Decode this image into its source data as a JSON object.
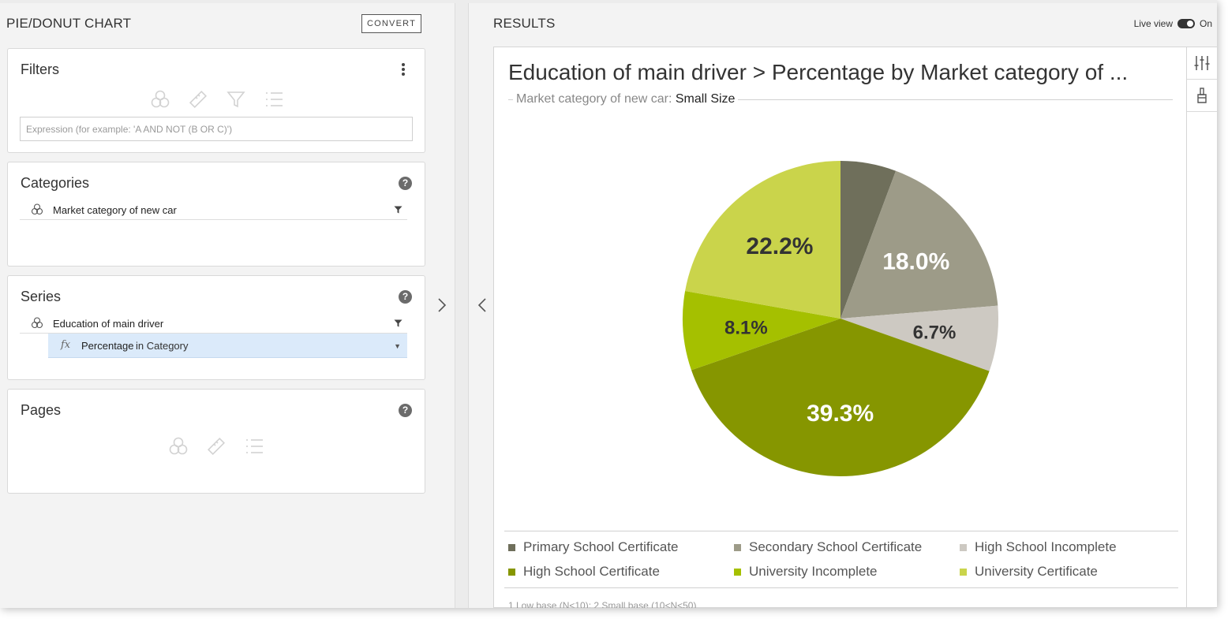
{
  "left_panel": {
    "title": "PIE/DONUT CHART",
    "convert_label": "CONVERT",
    "filters": {
      "title": "Filters",
      "expression_placeholder": "Expression (for example: 'A AND NOT (B OR C)')"
    },
    "categories": {
      "title": "Categories",
      "help": "?",
      "items": [
        {
          "label": "Market category of new car"
        }
      ]
    },
    "series": {
      "title": "Series",
      "help": "?",
      "field": {
        "label": "Education of main driver"
      },
      "measure": {
        "fx": "fx",
        "label": "Percentage",
        "sub": "in Category"
      }
    },
    "pages": {
      "title": "Pages",
      "help": "?"
    }
  },
  "right_panel": {
    "title": "RESULTS",
    "live_view_label": "Live view",
    "live_view_state": "On",
    "footnote": "1 Low base (N<10); 2 Small base (10<N<50)"
  },
  "chart_data": {
    "type": "pie",
    "title": "Education of main driver > Percentage by Market category of ...",
    "subtitle_label": "Market category of new car:",
    "subtitle_value": "Small Size",
    "categories": [
      "Primary School Certificate",
      "Secondary School Certificate",
      "High School Incomplete",
      "High School Certificate",
      "University Incomplete",
      "University Certificate"
    ],
    "values": [
      5.7,
      18.0,
      6.7,
      39.3,
      8.1,
      22.2
    ],
    "data_labels": [
      "",
      "18.0%",
      "6.7%",
      "39.3%",
      "8.1%",
      "22.2%"
    ],
    "label_colors": [
      "#ffffff",
      "#ffffff",
      "#333333",
      "#ffffff",
      "#333333",
      "#333333"
    ],
    "colors": [
      "#6f6f5b",
      "#9d9b88",
      "#cdc9c2",
      "#869600",
      "#a5c000",
      "#cad44b"
    ],
    "legend_position": "bottom"
  }
}
